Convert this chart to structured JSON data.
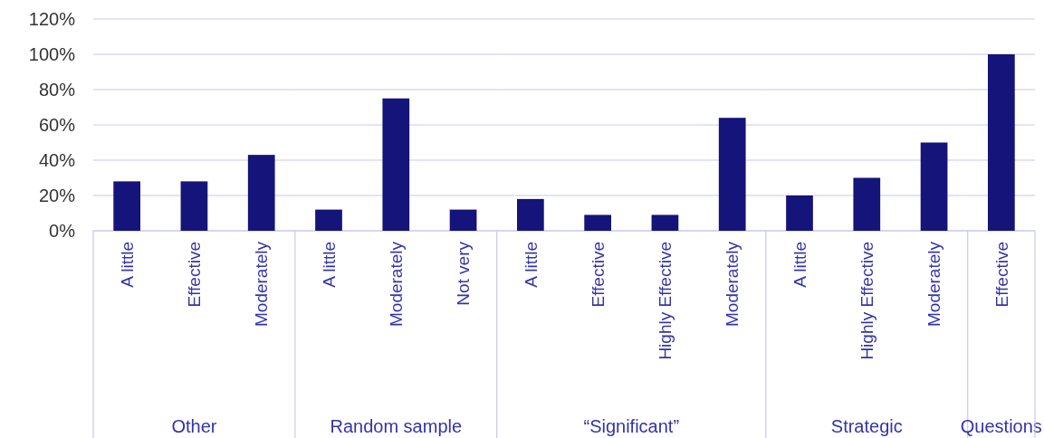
{
  "chart_data": [
    {
      "type": "bar",
      "xlabel": "Other",
      "categories": [
        "A little",
        "Effective",
        "Moderately"
      ],
      "values": [
        28,
        28,
        43
      ],
      "color": "#14147a",
      "ylim": [
        0,
        120
      ],
      "yticks": [
        {
          "value": 0,
          "label": "0%"
        },
        {
          "value": 20,
          "label": "20%"
        },
        {
          "value": 40,
          "label": "40%"
        },
        {
          "value": 60,
          "label": "60%"
        },
        {
          "value": 80,
          "label": "80%"
        },
        {
          "value": 100,
          "label": "100%"
        },
        {
          "value": 120,
          "label": "120%"
        }
      ],
      "grid": "y"
    },
    {
      "type": "bar",
      "xlabel": "Random sample",
      "categories": [
        "A little",
        "Moderately",
        "Not very"
      ],
      "values": [
        12,
        75,
        12
      ],
      "color": "#14147a",
      "ylim": [
        0,
        120
      ],
      "yticks": [
        0,
        20,
        40,
        60,
        80,
        100,
        120
      ],
      "grid": "y",
      "tick_labels": "x"
    },
    {
      "type": "bar",
      "xlabel": "“Significant”",
      "categories": [
        "A little",
        "Effective",
        "Highly Effective",
        "Moderately"
      ],
      "values": [
        18,
        9,
        9,
        64
      ],
      "color": "#14147a",
      "ylim": [
        0,
        120
      ],
      "yticks": [
        0,
        20,
        40,
        60,
        80,
        100,
        120
      ],
      "grid": "y",
      "tick_labels": "x"
    },
    {
      "type": "bar",
      "xlabel": "Strategic",
      "categories": [
        "A little",
        "Highly Effective",
        "Moderately"
      ],
      "values": [
        20,
        30,
        50
      ],
      "color": "#14147a",
      "ylim": [
        0,
        120
      ],
      "yticks": [
        0,
        20,
        40,
        60,
        80,
        100,
        120
      ],
      "grid": "y",
      "tick_labels": "x"
    },
    {
      "type": "bar",
      "xlabel": "Questions",
      "categories": [
        "Effective"
      ],
      "values": [
        100
      ],
      "color": "#14147a",
      "ylim": [
        0,
        120
      ],
      "yticks": [
        0,
        20,
        40,
        60,
        80,
        100,
        120
      ],
      "grid": "y",
      "tick_labels": "x"
    }
  ]
}
